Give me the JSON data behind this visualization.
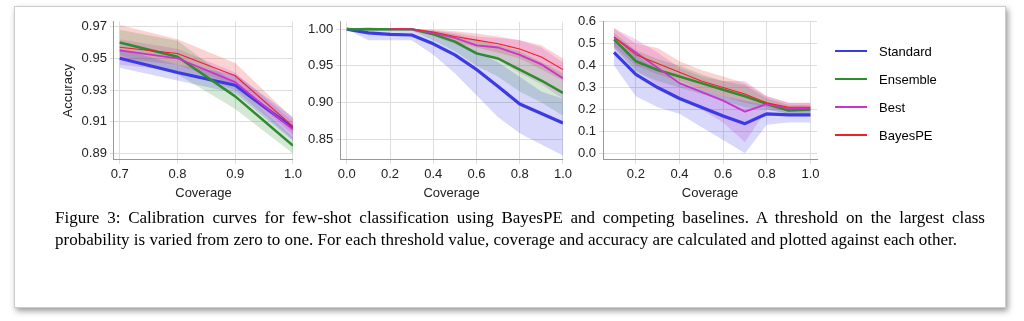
{
  "chart_data": [
    {
      "type": "line",
      "xlabel": "Coverage",
      "ylabel": "Accuracy",
      "x": [
        0.7,
        0.8,
        0.9,
        1.0
      ],
      "xlim": [
        0.69,
        1.0
      ],
      "xticks": [
        {
          "value": 0.7,
          "label": "0.7"
        },
        {
          "value": 0.8,
          "label": "0.8"
        },
        {
          "value": 0.9,
          "label": "0.9"
        },
        {
          "value": 1.0,
          "label": "1.0"
        }
      ],
      "ylim": [
        0.886,
        0.973
      ],
      "yticks": [
        0.89,
        0.91,
        0.93,
        0.95,
        0.97
      ],
      "grid": true,
      "marker": "none",
      "line_style": "solid",
      "legend": "right",
      "series": [
        {
          "name": "Standard",
          "color": "#3b3be6",
          "values": [
            0.95,
            0.941,
            0.933,
            0.906
          ],
          "lower": [
            0.944,
            0.936,
            0.928,
            0.898
          ],
          "upper": [
            0.956,
            0.946,
            0.94,
            0.913
          ]
        },
        {
          "name": "Ensemble",
          "color": "#2e8b2e",
          "values": [
            0.96,
            0.951,
            0.926,
            0.895
          ],
          "lower": [
            0.952,
            0.94,
            0.918,
            0.89
          ],
          "upper": [
            0.968,
            0.961,
            0.934,
            0.9
          ]
        },
        {
          "name": "Best",
          "color": "#cc33cc",
          "values": [
            0.955,
            0.95,
            0.935,
            0.905
          ],
          "lower": [
            0.946,
            0.942,
            0.93,
            0.899
          ],
          "upper": [
            0.962,
            0.956,
            0.941,
            0.91
          ]
        },
        {
          "name": "BayesPE",
          "color": "#ee2222",
          "values": [
            0.957,
            0.953,
            0.939,
            0.907
          ],
          "lower": [
            0.95,
            0.946,
            0.933,
            0.902
          ],
          "upper": [
            0.971,
            0.962,
            0.947,
            0.912
          ]
        }
      ]
    },
    {
      "type": "line",
      "xlabel": "Coverage",
      "x": [
        0.0,
        0.1,
        0.2,
        0.3,
        0.4,
        0.5,
        0.6,
        0.7,
        0.8,
        0.9,
        1.0
      ],
      "xlim": [
        -0.03,
        1.0
      ],
      "xticks": [
        {
          "value": 0.0,
          "label": "0.0"
        },
        {
          "value": 0.2,
          "label": "0.2"
        },
        {
          "value": 0.4,
          "label": "0.4"
        },
        {
          "value": 0.6,
          "label": "0.6"
        },
        {
          "value": 0.8,
          "label": "0.8"
        },
        {
          "value": 1.0,
          "label": "1.0"
        }
      ],
      "ylim": [
        0.822,
        1.01
      ],
      "yticks": [
        0.85,
        {
          "value": 0.9,
          "label": "0.90"
        },
        0.95,
        {
          "value": 1.0,
          "label": "1.00"
        }
      ],
      "grid": true,
      "marker": "none",
      "line_style": "solid",
      "series": [
        {
          "color": "#3b3be6",
          "values": [
            1.0,
            0.995,
            0.993,
            0.992,
            0.98,
            0.965,
            0.945,
            0.922,
            0.898,
            0.885,
            0.872
          ],
          "lower": [
            1.0,
            0.985,
            0.985,
            0.985,
            0.965,
            0.94,
            0.91,
            0.88,
            0.858,
            0.843,
            0.828
          ],
          "upper": [
            1.0,
            1.003,
            1.0,
            1.0,
            0.99,
            0.982,
            0.97,
            0.955,
            0.935,
            0.915,
            0.905
          ]
        },
        {
          "color": "#2e8b2e",
          "values": [
            1.0,
            1.0,
            1.0,
            1.0,
            0.993,
            0.983,
            0.967,
            0.96,
            0.945,
            0.93,
            0.913
          ],
          "lower": [
            1.0,
            0.998,
            0.998,
            0.998,
            0.985,
            0.97,
            0.95,
            0.935,
            0.915,
            0.9,
            0.882
          ],
          "upper": [
            1.0,
            1.0,
            1.0,
            1.0,
            0.998,
            0.993,
            0.985,
            0.978,
            0.97,
            0.955,
            0.94
          ]
        },
        {
          "color": "#cc33cc",
          "values": [
            null,
            null,
            1.0,
            1.0,
            0.995,
            0.988,
            0.978,
            0.975,
            0.965,
            0.952,
            0.933
          ],
          "lower": [
            1.0,
            0.998,
            0.998,
            0.998,
            0.99,
            0.98,
            0.965,
            0.958,
            0.94,
            0.925,
            0.905
          ],
          "upper": [
            1.0,
            1.0,
            1.0,
            1.0,
            0.998,
            0.995,
            0.99,
            0.988,
            0.985,
            0.975,
            0.955
          ]
        },
        {
          "color": "#ee2222",
          "values": [
            null,
            null,
            1.0,
            1.0,
            0.996,
            0.99,
            0.985,
            0.98,
            0.973,
            0.962,
            0.945
          ],
          "lower": [
            1.0,
            0.998,
            0.998,
            0.998,
            0.992,
            0.982,
            0.975,
            0.968,
            0.96,
            0.945,
            0.93
          ],
          "upper": [
            1.0,
            1.0,
            1.0,
            1.0,
            0.999,
            0.997,
            0.994,
            0.99,
            0.985,
            0.978,
            0.96
          ]
        }
      ]
    },
    {
      "type": "line",
      "xlabel": "Coverage",
      "x": [
        0.1,
        0.2,
        0.3,
        0.4,
        0.5,
        0.6,
        0.7,
        0.8,
        0.9,
        1.0
      ],
      "xlim": [
        0.05,
        1.03
      ],
      "xticks": [
        {
          "value": 0.2,
          "label": "0.2"
        },
        {
          "value": 0.4,
          "label": "0.4"
        },
        {
          "value": 0.6,
          "label": "0.6"
        },
        {
          "value": 0.8,
          "label": "0.8"
        },
        {
          "value": 1.0,
          "label": "1.0"
        }
      ],
      "ylim": [
        -0.03,
        0.6
      ],
      "yticks": [
        {
          "value": 0,
          "label": "0.0"
        },
        0.1,
        0.2,
        0.3,
        0.4,
        0.5,
        0.6
      ],
      "grid": true,
      "marker": "none",
      "line_style": "solid",
      "annotations": [
        "Figure 3: Calibration curves for few-shot classification using BayesPE and competing baselines. A threshold on the largest class probability is varied from zero to one. For each threshold value, coverage and accuracy are calculated and plotted against each other."
      ],
      "series": [
        {
          "color": "#3b3be6",
          "values": [
            0.46,
            0.36,
            0.3,
            0.25,
            0.21,
            0.17,
            0.135,
            0.18,
            0.175,
            0.175
          ],
          "lower": [
            0.4,
            0.26,
            0.21,
            0.18,
            0.12,
            0.06,
            0.0,
            0.13,
            0.14,
            0.14
          ],
          "upper": [
            0.52,
            0.45,
            0.38,
            0.32,
            0.29,
            0.26,
            0.24,
            0.22,
            0.21,
            0.21
          ]
        },
        {
          "color": "#2e8b2e",
          "values": [
            0.52,
            0.42,
            0.38,
            0.35,
            0.32,
            0.29,
            0.26,
            0.225,
            0.195,
            0.2
          ],
          "lower": [
            0.48,
            0.37,
            0.33,
            0.3,
            0.27,
            0.24,
            0.21,
            0.2,
            0.18,
            0.18
          ],
          "upper": [
            0.55,
            0.47,
            0.43,
            0.4,
            0.36,
            0.33,
            0.31,
            0.25,
            0.22,
            0.22
          ]
        },
        {
          "color": "#cc33cc",
          "values": [
            0.53,
            0.46,
            0.39,
            0.32,
            0.28,
            0.24,
            0.19,
            0.225,
            0.205,
            0.205
          ],
          "lower": [
            0.48,
            0.38,
            0.31,
            0.25,
            0.2,
            0.14,
            0.05,
            0.2,
            0.18,
            0.18
          ],
          "upper": [
            0.57,
            0.52,
            0.46,
            0.39,
            0.35,
            0.33,
            0.33,
            0.26,
            0.23,
            0.23
          ]
        },
        {
          "color": "#ee2222",
          "values": [
            0.53,
            0.45,
            0.41,
            0.37,
            0.33,
            0.3,
            0.27,
            0.23,
            0.21,
            0.21
          ],
          "lower": [
            0.49,
            0.4,
            0.36,
            0.33,
            0.29,
            0.26,
            0.23,
            0.21,
            0.19,
            0.19
          ],
          "upper": [
            0.57,
            0.5,
            0.48,
            0.42,
            0.38,
            0.35,
            0.32,
            0.26,
            0.23,
            0.23
          ]
        }
      ]
    }
  ]
}
